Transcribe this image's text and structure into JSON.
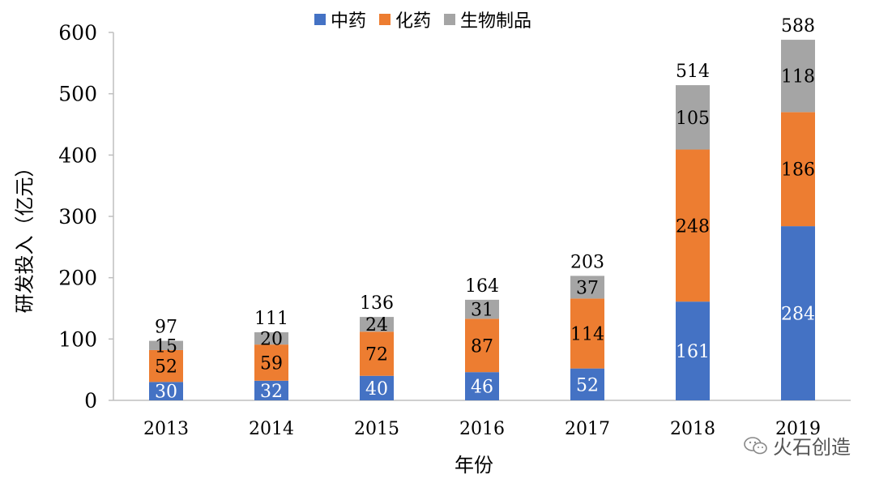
{
  "chart_data": {
    "type": "bar",
    "stacked": true,
    "categories": [
      "2013",
      "2014",
      "2015",
      "2016",
      "2017",
      "2018",
      "2019"
    ],
    "series": [
      {
        "name": "中药",
        "color": "#4472c4",
        "label_color": "#ffffff",
        "values": [
          30,
          32,
          40,
          46,
          52,
          161,
          284
        ]
      },
      {
        "name": "化药",
        "color": "#ed7d31",
        "label_color": "#000000",
        "values": [
          52,
          59,
          72,
          87,
          114,
          248,
          186
        ]
      },
      {
        "name": "生物制品",
        "color": "#a5a5a5",
        "label_color": "#000000",
        "values": [
          15,
          20,
          24,
          31,
          37,
          105,
          118
        ]
      }
    ],
    "totals": [
      97,
      111,
      136,
      164,
      203,
      514,
      588
    ],
    "xlabel": "年份",
    "ylabel": "研发投入（亿元）",
    "ylim": [
      0,
      600
    ],
    "yticks": [
      "0",
      "100",
      "200",
      "300",
      "400",
      "500",
      "600"
    ],
    "grid": false,
    "legend_position": "top"
  },
  "watermark": "火石创造"
}
